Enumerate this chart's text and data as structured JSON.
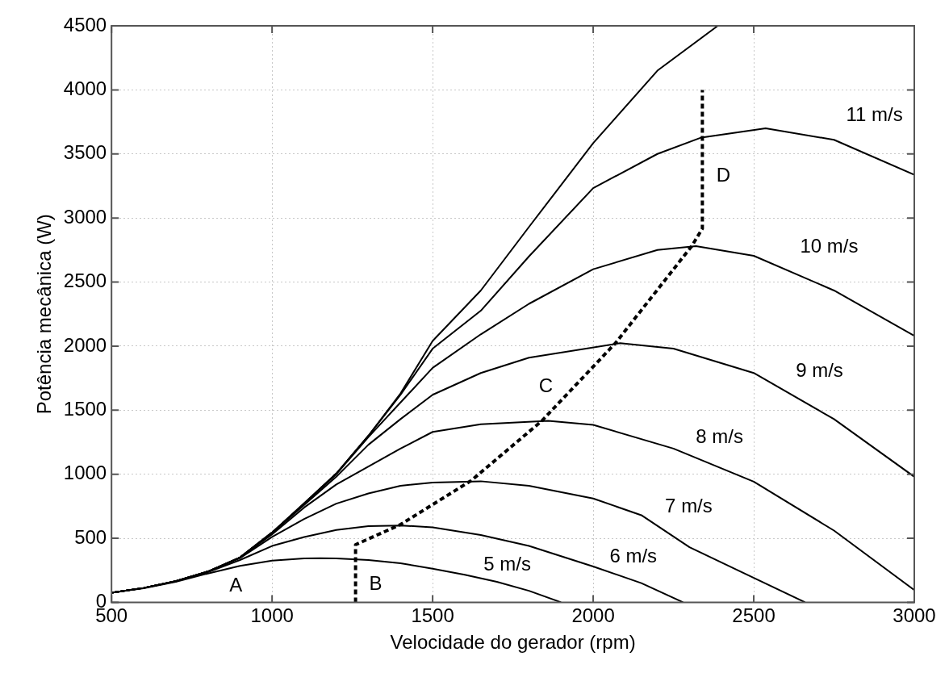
{
  "chart_data": {
    "type": "line",
    "xlabel": "Velocidade do gerador (rpm)",
    "ylabel": "Potência mecânica (W)",
    "xlim": [
      500,
      3000
    ],
    "xticks": [
      500,
      1000,
      1500,
      2000,
      2500,
      3000
    ],
    "ylim": [
      0,
      4500
    ],
    "yticks": [
      0,
      500,
      1000,
      1500,
      2000,
      2500,
      3000,
      3500,
      4000,
      4500
    ],
    "grid": true,
    "marker": "none",
    "line_style": "solid",
    "series": [
      {
        "color": "#000000",
        "x": [
          500,
          600,
          700,
          800,
          900,
          1000,
          1100,
          1150,
          1200,
          1300,
          1400,
          1500,
          1600,
          1700,
          1800,
          1900
        ],
        "values": [
          75,
          110,
          160,
          225,
          285,
          325,
          343,
          345,
          343,
          330,
          305,
          262,
          215,
          160,
          90,
          0
        ]
      },
      {
        "color": "#000000",
        "x": [
          500,
          600,
          700,
          800,
          900,
          1000,
          1100,
          1200,
          1300,
          1400,
          1500,
          1650,
          1800,
          2000,
          2150,
          2280
        ],
        "values": [
          75,
          112,
          165,
          235,
          330,
          440,
          510,
          565,
          595,
          600,
          585,
          525,
          440,
          280,
          150,
          0
        ]
      },
      {
        "color": "#000000",
        "x": [
          500,
          600,
          700,
          800,
          900,
          1000,
          1100,
          1200,
          1300,
          1400,
          1500,
          1650,
          1800,
          2000,
          2150,
          2300,
          2450,
          2660
        ],
        "values": [
          75,
          112,
          165,
          240,
          345,
          510,
          650,
          770,
          850,
          910,
          935,
          945,
          910,
          810,
          680,
          430,
          250,
          0
        ]
      },
      {
        "color": "#000000",
        "x": [
          500,
          600,
          700,
          800,
          900,
          1000,
          1100,
          1200,
          1300,
          1400,
          1500,
          1650,
          1860,
          2000,
          2250,
          2500,
          2750,
          3000
        ],
        "values": [
          75,
          112,
          165,
          240,
          350,
          530,
          740,
          920,
          1060,
          1200,
          1330,
          1390,
          1416,
          1385,
          1200,
          942,
          560,
          95
        ]
      },
      {
        "color": "#000000",
        "x": [
          500,
          600,
          700,
          800,
          900,
          1000,
          1100,
          1200,
          1300,
          1400,
          1500,
          1650,
          1800,
          2084,
          2250,
          2500,
          2750,
          3000
        ],
        "values": [
          75,
          112,
          165,
          240,
          350,
          540,
          760,
          980,
          1230,
          1430,
          1620,
          1790,
          1910,
          2023,
          1980,
          1790,
          1430,
          980
        ]
      },
      {
        "color": "#000000",
        "x": [
          500,
          600,
          700,
          800,
          900,
          1000,
          1100,
          1200,
          1300,
          1400,
          1500,
          1650,
          1800,
          2000,
          2200,
          2320,
          2500,
          2750,
          3000
        ],
        "values": [
          75,
          112,
          165,
          240,
          350,
          545,
          770,
          1000,
          1290,
          1560,
          1830,
          2092,
          2330,
          2600,
          2750,
          2781,
          2705,
          2434,
          2080
        ]
      },
      {
        "color": "#000000",
        "x": [
          500,
          600,
          700,
          800,
          900,
          1000,
          1100,
          1200,
          1300,
          1400,
          1500,
          1650,
          1800,
          2000,
          2200,
          2337,
          2537,
          2750,
          3000
        ],
        "values": [
          75,
          112,
          165,
          240,
          350,
          545,
          770,
          1005,
          1300,
          1620,
          1980,
          2276,
          2700,
          3233,
          3500,
          3628,
          3700,
          3610,
          3338
        ]
      },
      {
        "color": "#000000",
        "x": [
          500,
          600,
          700,
          800,
          900,
          1000,
          1100,
          1200,
          1300,
          1400,
          1500,
          1650,
          1800,
          2000,
          2200,
          2388
        ],
        "values": [
          75,
          112,
          165,
          240,
          350,
          545,
          775,
          1005,
          1300,
          1630,
          2040,
          2434,
          2930,
          3584,
          4150,
          4500
        ]
      },
      {
        "color": "#000000",
        "line_style": "dashed",
        "x": [
          1260,
          1260,
          1400,
          1620,
          1840,
          2070,
          2307,
          2340,
          2340
        ],
        "values": [
          0,
          450,
          607,
          950,
          1416,
          2025,
          2781,
          2917,
          4000
        ]
      }
    ],
    "annotations": [
      {
        "text": "A",
        "x": 900,
        "y": 285
      },
      {
        "text": "B",
        "x": 1260,
        "y": 139
      },
      {
        "text": "C",
        "x": 1840,
        "y": 1416
      },
      {
        "text": "D",
        "x": 2340,
        "y": 3325
      },
      {
        "text": "5 m/s",
        "x": 1700,
        "y": 160
      },
      {
        "text": "6 m/s",
        "x": 2150,
        "y": 150
      },
      {
        "text": "7 m/s",
        "x": 2300,
        "y": 430
      },
      {
        "text": "8 m/s",
        "x": 2250,
        "y": 1200
      },
      {
        "text": "9 m/s",
        "x": 2750,
        "y": 1430
      },
      {
        "text": "10 m/s",
        "x": 2750,
        "y": 2434
      },
      {
        "text": "11 m/s",
        "x": 2750,
        "y": 3610
      }
    ]
  }
}
